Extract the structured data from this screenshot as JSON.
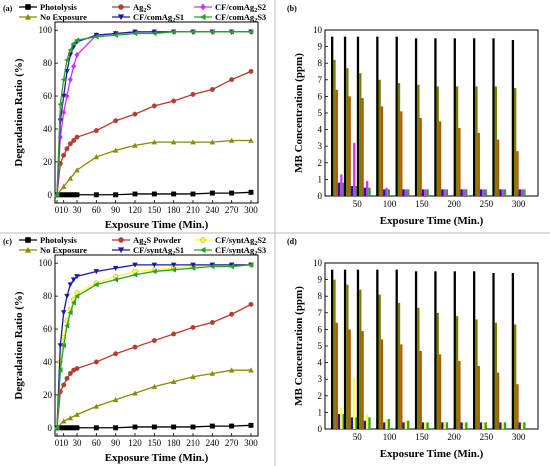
{
  "chart_data": [
    {
      "panel_label": "(a)",
      "type": "line",
      "xlabel": "Exposure Time (Min.)",
      "ylabel": "Degradation Ratio (%)",
      "xlim": [
        0,
        310
      ],
      "ylim": [
        -5,
        105
      ],
      "xticks": [
        "0",
        "10",
        "30",
        "60",
        "90",
        "120",
        "150",
        "180",
        "210",
        "240",
        "270",
        "300"
      ],
      "yticks": [
        "0",
        "20",
        "40",
        "60",
        "80",
        "100"
      ],
      "legend_position": "top",
      "series": [
        {
          "name": "Photolysis",
          "color": "#000000",
          "marker": "square",
          "x": [
            0,
            5,
            10,
            15,
            20,
            25,
            30,
            60,
            90,
            120,
            150,
            180,
            210,
            240,
            270,
            300
          ],
          "y": [
            0,
            0,
            0,
            0,
            0,
            0,
            0,
            0,
            0,
            0.5,
            0.5,
            0.5,
            0.5,
            1,
            1,
            1.5
          ]
        },
        {
          "name": "Ag2S",
          "color": "#c0392b",
          "marker": "circle",
          "x": [
            0,
            5,
            10,
            15,
            20,
            25,
            30,
            60,
            90,
            120,
            150,
            180,
            210,
            240,
            270,
            300
          ],
          "y": [
            0,
            19,
            24,
            28,
            31,
            33,
            35,
            39,
            45,
            49,
            54,
            57,
            61,
            64,
            70,
            75
          ]
        },
        {
          "name": "CF/comAg2S2",
          "color": "#cc33ff",
          "marker": "diamond",
          "x": [
            0,
            5,
            10,
            15,
            20,
            25,
            30,
            60,
            90,
            120,
            150,
            180,
            210,
            240,
            270,
            300
          ],
          "y": [
            0,
            35,
            50,
            60,
            70,
            78,
            85,
            97,
            98,
            99,
            99,
            99,
            99,
            99,
            99,
            99
          ]
        },
        {
          "name": "No Exposure",
          "color": "#8b8b00",
          "marker": "triangle-up",
          "x": [
            0,
            10,
            20,
            30,
            60,
            90,
            120,
            150,
            180,
            210,
            240,
            270,
            300
          ],
          "y": [
            0,
            5,
            10,
            15,
            23,
            27,
            30,
            32,
            32,
            32,
            32,
            33,
            33
          ]
        },
        {
          "name": "CF/comAg2S1",
          "color": "#1a1aa6",
          "marker": "triangle-down",
          "x": [
            0,
            5,
            10,
            15,
            20,
            25,
            30,
            60,
            90,
            120,
            150,
            180,
            210,
            240,
            270,
            300
          ],
          "y": [
            0,
            45,
            60,
            75,
            85,
            90,
            93,
            97,
            98,
            99,
            99,
            99,
            99,
            99,
            99,
            99
          ]
        },
        {
          "name": "CF/comAg2S3",
          "color": "#2ca02c",
          "marker": "triangle-left",
          "x": [
            0,
            5,
            10,
            15,
            20,
            25,
            30,
            60,
            90,
            120,
            150,
            180,
            210,
            240,
            270,
            300
          ],
          "y": [
            0,
            55,
            70,
            82,
            88,
            92,
            94,
            96,
            97,
            98,
            98,
            99,
            99,
            99,
            99,
            99
          ]
        }
      ]
    },
    {
      "panel_label": "(b)",
      "type": "bar",
      "xlabel": "Exposure Time (Min.)",
      "ylabel": "MB Concentration (ppm)",
      "xlim": [
        0,
        330
      ],
      "ylim": [
        0,
        10
      ],
      "xticks": [
        "50",
        "100",
        "150",
        "200",
        "250",
        "300"
      ],
      "yticks": [
        "0",
        "1",
        "2",
        "3",
        "4",
        "5",
        "6",
        "7",
        "8",
        "9",
        "10"
      ],
      "groups": [
        {
          "x": 20,
          "values": [
            9.6,
            8.2,
            6.4,
            0.8,
            1.3,
            0.8
          ]
        },
        {
          "x": 40,
          "values": [
            9.6,
            7.7,
            6.0,
            0.6,
            3.2,
            0.6
          ]
        },
        {
          "x": 60,
          "values": [
            9.6,
            7.4,
            5.9,
            0.5,
            0.9,
            0.5
          ]
        },
        {
          "x": 90,
          "values": [
            9.6,
            7.0,
            5.4,
            0.4,
            0.5,
            0.4
          ]
        },
        {
          "x": 120,
          "values": [
            9.6,
            6.8,
            5.1,
            0.4,
            0.4,
            0.4
          ]
        },
        {
          "x": 150,
          "values": [
            9.5,
            6.7,
            4.7,
            0.4,
            0.4,
            0.4
          ]
        },
        {
          "x": 180,
          "values": [
            9.5,
            6.6,
            4.5,
            0.4,
            0.4,
            0.4
          ]
        },
        {
          "x": 210,
          "values": [
            9.5,
            6.6,
            4.1,
            0.4,
            0.4,
            0.4
          ]
        },
        {
          "x": 240,
          "values": [
            9.5,
            6.6,
            3.8,
            0.4,
            0.4,
            0.4
          ]
        },
        {
          "x": 270,
          "values": [
            9.5,
            6.6,
            3.4,
            0.4,
            0.4,
            0.4
          ]
        },
        {
          "x": 300,
          "values": [
            9.4,
            6.5,
            2.7,
            0.4,
            0.4,
            0.4
          ]
        }
      ],
      "bar_colors": [
        "#000000",
        "#7a7a00",
        "#b05a00",
        "#1a1aa6",
        "#cc33ff",
        "#2ca02c"
      ]
    },
    {
      "panel_label": "(c)",
      "type": "line",
      "xlabel": "Exposure Time (Min.)",
      "ylabel": "Degradation Ratio (%)",
      "xlim": [
        0,
        310
      ],
      "ylim": [
        -5,
        105
      ],
      "xticks": [
        "0",
        "10",
        "30",
        "60",
        "90",
        "120",
        "150",
        "180",
        "210",
        "240",
        "270",
        "300"
      ],
      "yticks": [
        "0",
        "20",
        "40",
        "60",
        "80",
        "100"
      ],
      "legend_position": "top",
      "series": [
        {
          "name": "Photolysis",
          "color": "#000000",
          "marker": "square",
          "x": [
            0,
            5,
            10,
            15,
            20,
            25,
            30,
            60,
            90,
            120,
            150,
            180,
            210,
            240,
            270,
            300
          ],
          "y": [
            0,
            0,
            0,
            0,
            0,
            0,
            0,
            0,
            0,
            0.5,
            0.5,
            0.5,
            0.5,
            1,
            1,
            1.5
          ]
        },
        {
          "name": "Ag2S Powder",
          "color": "#c0392b",
          "marker": "circle",
          "x": [
            0,
            5,
            10,
            15,
            20,
            25,
            30,
            60,
            90,
            120,
            150,
            180,
            210,
            240,
            270,
            300
          ],
          "y": [
            0,
            22,
            26,
            30,
            33,
            35,
            36,
            40,
            45,
            49,
            53,
            57,
            61,
            64,
            69,
            75
          ]
        },
        {
          "name": "CF/syntAg2S2",
          "color": "#ffff33",
          "marker": "circle",
          "x": [
            0,
            5,
            10,
            15,
            20,
            25,
            30,
            60,
            90,
            120,
            150,
            180,
            210,
            240,
            270,
            300
          ],
          "y": [
            0,
            40,
            55,
            65,
            72,
            78,
            82,
            88,
            92,
            95,
            96,
            97,
            98,
            99,
            99,
            99
          ]
        },
        {
          "name": "No Exposure",
          "color": "#8b8b00",
          "marker": "triangle-up",
          "x": [
            0,
            10,
            20,
            30,
            60,
            90,
            120,
            150,
            180,
            210,
            240,
            270,
            300
          ],
          "y": [
            0,
            4,
            6,
            8,
            13,
            17,
            21,
            25,
            28,
            31,
            33,
            35,
            35
          ]
        },
        {
          "name": "CF/syntAg2S1",
          "color": "#1a1aa6",
          "marker": "triangle-down",
          "x": [
            0,
            5,
            10,
            15,
            20,
            25,
            30,
            60,
            90,
            120,
            150,
            180,
            210,
            240,
            270,
            300
          ],
          "y": [
            0,
            50,
            70,
            80,
            87,
            90,
            92,
            95,
            97,
            99,
            99,
            99,
            99,
            99,
            99,
            99
          ]
        },
        {
          "name": "CF/syntAg2S3",
          "color": "#2ca02c",
          "marker": "triangle-left",
          "x": [
            0,
            5,
            10,
            15,
            20,
            25,
            30,
            60,
            90,
            120,
            150,
            180,
            210,
            240,
            270,
            300
          ],
          "y": [
            0,
            35,
            50,
            62,
            70,
            76,
            80,
            87,
            90,
            93,
            95,
            96,
            97,
            98,
            98,
            99
          ]
        }
      ]
    },
    {
      "panel_label": "(d)",
      "type": "bar",
      "xlabel": "Exposure Time (Min.)",
      "ylabel": "MB Concentration (ppm)",
      "xlim": [
        0,
        330
      ],
      "ylim": [
        0,
        10
      ],
      "xticks": [
        "50",
        "100",
        "150",
        "200",
        "250",
        "300"
      ],
      "yticks": [
        "0",
        "1",
        "2",
        "3",
        "4",
        "5",
        "6",
        "7",
        "8",
        "9",
        "10"
      ],
      "groups": [
        {
          "x": 20,
          "values": [
            9.6,
            9.0,
            6.4,
            0.9,
            1.3,
            0.9
          ]
        },
        {
          "x": 40,
          "values": [
            9.6,
            8.7,
            6.0,
            0.7,
            3.1,
            0.7
          ]
        },
        {
          "x": 60,
          "values": [
            9.6,
            8.4,
            5.9,
            0.5,
            0.9,
            0.7
          ]
        },
        {
          "x": 90,
          "values": [
            9.6,
            8.1,
            5.4,
            0.4,
            0.6,
            0.6
          ]
        },
        {
          "x": 120,
          "values": [
            9.6,
            7.6,
            5.1,
            0.4,
            0.5,
            0.5
          ]
        },
        {
          "x": 150,
          "values": [
            9.5,
            7.3,
            4.7,
            0.4,
            0.4,
            0.4
          ]
        },
        {
          "x": 180,
          "values": [
            9.5,
            7.0,
            4.5,
            0.4,
            0.4,
            0.4
          ]
        },
        {
          "x": 210,
          "values": [
            9.5,
            6.8,
            4.1,
            0.4,
            0.4,
            0.4
          ]
        },
        {
          "x": 240,
          "values": [
            9.5,
            6.6,
            3.8,
            0.4,
            0.4,
            0.4
          ]
        },
        {
          "x": 270,
          "values": [
            9.4,
            6.4,
            3.4,
            0.4,
            0.4,
            0.4
          ]
        },
        {
          "x": 300,
          "values": [
            9.4,
            6.3,
            2.7,
            0.4,
            0.4,
            0.4
          ]
        }
      ],
      "bar_colors": [
        "#000000",
        "#7a7a00",
        "#b05a00",
        "#1a1aa6",
        "#ffff33",
        "#2ca02c"
      ]
    }
  ]
}
